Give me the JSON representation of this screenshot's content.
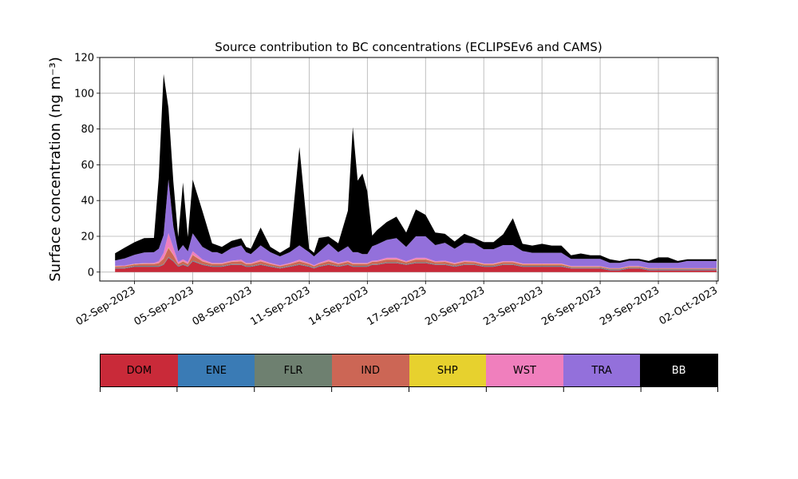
{
  "chart_data": {
    "type": "area",
    "title": "Source contribution to BC concentrations (ECLIPSEv6 and CAMS)",
    "ylabel": "Surface concentration (ng m⁻³)",
    "xlabel": "",
    "ylim": [
      -5,
      120
    ],
    "yticks": [
      0,
      20,
      40,
      60,
      80,
      100,
      120
    ],
    "xlim": [
      "2023-08-31T05:00",
      "2023-10-02T02:00"
    ],
    "xtick_labels": [
      "02-Sep-2023",
      "05-Sep-2023",
      "08-Sep-2023",
      "11-Sep-2023",
      "14-Sep-2023",
      "17-Sep-2023",
      "20-Sep-2023",
      "23-Sep-2023",
      "26-Sep-2023",
      "29-Sep-2023",
      "02-Oct-2023"
    ],
    "grid": true,
    "stacked": true,
    "x": [
      "2023-09-01T00:00",
      "2023-09-01T12:00",
      "2023-09-02T00:00",
      "2023-09-02T12:00",
      "2023-09-03T00:00",
      "2023-09-03T06:00",
      "2023-09-03T12:00",
      "2023-09-03T18:00",
      "2023-09-04T00:00",
      "2023-09-04T06:00",
      "2023-09-04T12:00",
      "2023-09-04T18:00",
      "2023-09-05T00:00",
      "2023-09-05T12:00",
      "2023-09-06T00:00",
      "2023-09-06T06:00",
      "2023-09-06T12:00",
      "2023-09-07T00:00",
      "2023-09-07T12:00",
      "2023-09-07T18:00",
      "2023-09-08T00:00",
      "2023-09-08T12:00",
      "2023-09-09T00:00",
      "2023-09-09T12:00",
      "2023-09-10T00:00",
      "2023-09-10T12:00",
      "2023-09-11T00:00",
      "2023-09-11T06:00",
      "2023-09-11T12:00",
      "2023-09-12T00:00",
      "2023-09-12T12:00",
      "2023-09-13T00:00",
      "2023-09-13T06:00",
      "2023-09-13T12:00",
      "2023-09-13T18:00",
      "2023-09-14T00:00",
      "2023-09-14T06:00",
      "2023-09-14T12:00",
      "2023-09-15T00:00",
      "2023-09-15T12:00",
      "2023-09-16T00:00",
      "2023-09-16T12:00",
      "2023-09-17T00:00",
      "2023-09-17T12:00",
      "2023-09-18T00:00",
      "2023-09-18T12:00",
      "2023-09-19T00:00",
      "2023-09-19T12:00",
      "2023-09-20T00:00",
      "2023-09-20T12:00",
      "2023-09-21T00:00",
      "2023-09-21T12:00",
      "2023-09-22T00:00",
      "2023-09-22T12:00",
      "2023-09-23T00:00",
      "2023-09-23T12:00",
      "2023-09-24T00:00",
      "2023-09-24T12:00",
      "2023-09-25T00:00",
      "2023-09-25T12:00",
      "2023-09-26T00:00",
      "2023-09-26T12:00",
      "2023-09-27T00:00",
      "2023-09-27T12:00",
      "2023-09-28T00:00",
      "2023-09-28T12:00",
      "2023-09-29T00:00",
      "2023-09-29T12:00",
      "2023-09-30T00:00",
      "2023-09-30T12:00",
      "2023-10-01T00:00",
      "2023-10-01T12:00",
      "2023-10-02T00:00"
    ],
    "series": [
      {
        "name": "DOM",
        "color": "#c92a39",
        "values": [
          2,
          2,
          3,
          3,
          3,
          3,
          4,
          8,
          6,
          3,
          4,
          3,
          6,
          4,
          3,
          3,
          3,
          4,
          4,
          3,
          3,
          4,
          3,
          2,
          3,
          4,
          3,
          2,
          3,
          4,
          3,
          4,
          3,
          3,
          3,
          3,
          4,
          4,
          5,
          5,
          4,
          5,
          5,
          4,
          4,
          3,
          4,
          4,
          3,
          3,
          4,
          4,
          3,
          3,
          3,
          3,
          3,
          2,
          2,
          2,
          2,
          1,
          1,
          2,
          2,
          1,
          1,
          1,
          1,
          1,
          1,
          1,
          1
        ]
      },
      {
        "name": "ENE",
        "color": "#3a7bb5",
        "values": [
          0.2,
          0.2,
          0.2,
          0.2,
          0.2,
          0.2,
          0.2,
          0.2,
          0.2,
          0.2,
          0.2,
          0.2,
          0.2,
          0.2,
          0.2,
          0.2,
          0.2,
          0.2,
          0.2,
          0.2,
          0.2,
          0.2,
          0.2,
          0.2,
          0.2,
          0.2,
          0.2,
          0.2,
          0.2,
          0.2,
          0.2,
          0.2,
          0.2,
          0.2,
          0.2,
          0.2,
          0.2,
          0.2,
          0.2,
          0.2,
          0.2,
          0.2,
          0.2,
          0.2,
          0.2,
          0.2,
          0.2,
          0.2,
          0.2,
          0.2,
          0.2,
          0.2,
          0.2,
          0.2,
          0.2,
          0.2,
          0.2,
          0.2,
          0.2,
          0.2,
          0.2,
          0.2,
          0.2,
          0.2,
          0.2,
          0.2,
          0.2,
          0.2,
          0.2,
          0.2,
          0.2,
          0.2,
          0.2
        ]
      },
      {
        "name": "FLR",
        "color": "#6e8070",
        "values": [
          0.3,
          0.3,
          0.3,
          0.3,
          0.3,
          0.3,
          0.3,
          0.3,
          0.3,
          0.3,
          0.3,
          0.3,
          0.3,
          0.3,
          0.3,
          0.3,
          0.3,
          0.3,
          0.3,
          0.3,
          0.3,
          0.3,
          0.3,
          0.3,
          0.3,
          0.3,
          0.3,
          0.3,
          0.3,
          0.3,
          0.3,
          0.3,
          0.3,
          0.3,
          0.3,
          0.3,
          0.3,
          0.3,
          0.3,
          0.3,
          0.3,
          0.3,
          0.3,
          0.3,
          0.3,
          0.3,
          0.3,
          0.3,
          0.3,
          0.3,
          0.3,
          0.3,
          0.3,
          0.3,
          0.3,
          0.3,
          0.3,
          0.3,
          0.3,
          0.3,
          0.3,
          0.3,
          0.3,
          0.3,
          0.3,
          0.3,
          0.3,
          0.3,
          0.3,
          0.3,
          0.3,
          0.3,
          0.3
        ]
      },
      {
        "name": "IND",
        "color": "#cc6655",
        "values": [
          0.6,
          0.8,
          0.8,
          1,
          1,
          1.5,
          3,
          5,
          3,
          1,
          1.5,
          1,
          3,
          1.5,
          1,
          1,
          1,
          1.2,
          1.5,
          1,
          1,
          1.5,
          1,
          0.8,
          1,
          1.5,
          1,
          0.8,
          1,
          1.5,
          1,
          1.2,
          1,
          1,
          1,
          1,
          1.2,
          1.3,
          1.5,
          1.5,
          1,
          1.5,
          1.5,
          1,
          1.2,
          1,
          1.2,
          1,
          0.8,
          0.8,
          1,
          1,
          0.8,
          0.8,
          0.8,
          0.8,
          0.8,
          0.5,
          0.5,
          0.5,
          0.5,
          0.4,
          0.4,
          0.5,
          0.5,
          0.4,
          0.4,
          0.4,
          0.4,
          0.4,
          0.4,
          0.4,
          0.4
        ]
      },
      {
        "name": "SHP",
        "color": "#e7d12e",
        "values": [
          0.1,
          0.1,
          0.1,
          0.1,
          0.1,
          0.1,
          0.2,
          0.3,
          0.2,
          0.1,
          0.1,
          0.1,
          0.2,
          0.1,
          0.1,
          0.1,
          0.1,
          0.1,
          0.1,
          0.1,
          0.1,
          0.1,
          0.1,
          0.1,
          0.1,
          0.1,
          0.1,
          0.1,
          0.1,
          0.1,
          0.1,
          0.1,
          0.1,
          0.1,
          0.1,
          0.1,
          0.1,
          0.1,
          0.2,
          0.2,
          0.1,
          0.2,
          0.2,
          0.1,
          0.1,
          0.1,
          0.1,
          0.1,
          0.1,
          0.1,
          0.1,
          0.1,
          0.1,
          0.1,
          0.1,
          0.1,
          0.1,
          0.1,
          0.1,
          0.1,
          0.1,
          0.1,
          0.1,
          0.1,
          0.1,
          0.1,
          0.1,
          0.1,
          0.1,
          0.1,
          0.1,
          0.1,
          0.1
        ]
      },
      {
        "name": "WST",
        "color": "#f07fbd",
        "values": [
          0.3,
          0.3,
          0.3,
          0.4,
          0.5,
          1,
          3,
          8,
          4,
          1,
          1,
          1,
          2,
          1,
          0.5,
          0.5,
          0.5,
          0.6,
          0.8,
          0.5,
          0.5,
          0.8,
          0.5,
          0.4,
          0.5,
          0.8,
          0.5,
          0.4,
          0.5,
          0.8,
          0.5,
          0.6,
          0.5,
          0.5,
          0.5,
          0.5,
          0.6,
          0.6,
          0.8,
          0.8,
          0.5,
          0.8,
          0.8,
          0.5,
          0.6,
          0.5,
          0.6,
          0.5,
          0.4,
          0.4,
          0.5,
          0.5,
          0.4,
          0.4,
          0.4,
          0.4,
          0.4,
          0.3,
          0.3,
          0.3,
          0.3,
          0.2,
          0.2,
          0.3,
          0.3,
          0.2,
          0.2,
          0.2,
          0.2,
          0.2,
          0.2,
          0.2,
          0.2
        ]
      },
      {
        "name": "TRA",
        "color": "#9370db",
        "values": [
          3,
          4,
          5,
          6,
          6,
          7,
          10,
          30,
          12,
          6,
          8,
          6,
          10,
          7,
          6,
          6,
          5,
          7,
          8,
          6,
          5,
          8,
          6,
          5,
          6,
          8,
          6,
          5,
          6,
          9,
          6,
          8,
          6,
          6,
          5,
          5,
          8,
          9,
          10,
          11,
          8,
          12,
          12,
          9,
          10,
          8,
          10,
          10,
          8,
          8,
          9,
          9,
          7,
          6,
          6,
          6,
          6,
          4,
          4,
          4,
          4,
          3,
          3,
          3,
          3,
          3,
          3,
          3,
          3,
          4,
          4,
          4,
          4
        ]
      },
      {
        "name": "BB",
        "color": "#000000",
        "values": [
          4,
          6,
          7,
          8,
          8,
          40,
          90,
          40,
          25,
          8,
          35,
          8,
          30,
          20,
          5,
          4,
          4,
          4,
          4,
          3,
          3,
          10,
          3,
          2,
          3,
          55,
          2,
          2,
          8,
          4,
          5,
          20,
          70,
          40,
          45,
          35,
          6,
          8,
          10,
          12,
          8,
          15,
          12,
          7,
          5,
          4,
          5,
          3,
          4,
          4,
          6,
          15,
          4,
          4,
          5,
          4,
          4,
          2,
          3,
          2,
          2,
          2,
          1,
          1,
          1,
          1,
          3,
          3,
          1,
          1,
          1,
          1,
          1
        ]
      }
    ]
  }
}
